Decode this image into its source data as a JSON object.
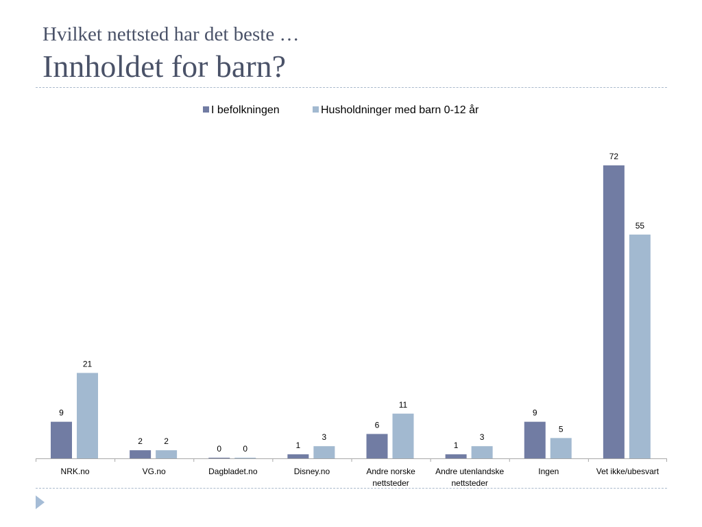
{
  "slide": {
    "title_line1": "Hvilket nettsted har det beste …",
    "title_line2": "Innholdet for barn?"
  },
  "chart_data": {
    "type": "bar",
    "categories": [
      [
        "NRK.no"
      ],
      [
        "VG.no"
      ],
      [
        "Dagbladet.no"
      ],
      [
        "Disney.no"
      ],
      [
        "Andre norske",
        "nettsteder"
      ],
      [
        "Andre utenlandske",
        "nettsteder"
      ],
      [
        "Ingen"
      ],
      [
        "Vet ikke/ubesvart"
      ]
    ],
    "series": [
      {
        "name": "I befolkningen",
        "color": "#717ca3",
        "values": [
          9,
          2,
          0,
          1,
          6,
          1,
          9,
          72
        ]
      },
      {
        "name": "Husholdninger med barn 0-12 år",
        "color": "#a2b9d0",
        "values": [
          21,
          2,
          0,
          3,
          11,
          3,
          5,
          55
        ]
      }
    ],
    "ylim": [
      0,
      72
    ],
    "legend_position": "top",
    "grid": false,
    "data_labels": true
  }
}
